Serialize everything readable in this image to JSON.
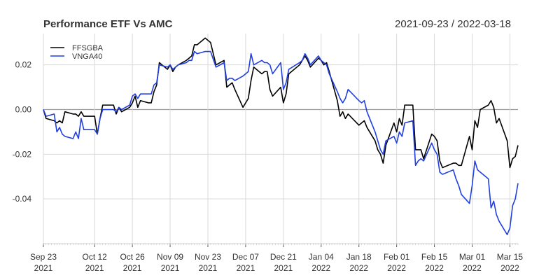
{
  "chart_data": {
    "type": "line",
    "title": "Performance ETF Vs AMC",
    "date_range": "2021-09-23 / 2022-03-18",
    "xlabel": "",
    "ylabel": "",
    "ylim": [
      -0.06,
      0.034
    ],
    "y_ticks": [
      0.02,
      0.0,
      -0.02,
      -0.04
    ],
    "y_tick_labels": [
      "0.02",
      "0.00",
      "-0.02",
      "-0.04"
    ],
    "x_range": [
      "2021-09-23",
      "2022-03-18"
    ],
    "x_ticks": [
      {
        "date": "2021-09-23",
        "line1": "Sep 23",
        "line2": "2021"
      },
      {
        "date": "2021-10-12",
        "line1": "Oct 12",
        "line2": "2021"
      },
      {
        "date": "2021-10-26",
        "line1": "Oct 26",
        "line2": "2021"
      },
      {
        "date": "2021-11-09",
        "line1": "Nov 09",
        "line2": "2021"
      },
      {
        "date": "2021-11-23",
        "line1": "Nov 23",
        "line2": "2021"
      },
      {
        "date": "2021-12-07",
        "line1": "Dec 07",
        "line2": "2021"
      },
      {
        "date": "2021-12-21",
        "line1": "Dec 21",
        "line2": "2021"
      },
      {
        "date": "2022-01-04",
        "line1": "Jan 04",
        "line2": "2022"
      },
      {
        "date": "2022-01-18",
        "line1": "Jan 18",
        "line2": "2022"
      },
      {
        "date": "2022-02-01",
        "line1": "Feb 01",
        "line2": "2022"
      },
      {
        "date": "2022-02-15",
        "line1": "Feb 15",
        "line2": "2022"
      },
      {
        "date": "2022-03-01",
        "line1": "Mar 01",
        "line2": "2022"
      },
      {
        "date": "2022-03-15",
        "line1": "Mar 15",
        "line2": "2022"
      }
    ],
    "legend_position": "top-left",
    "series": [
      {
        "name": "FFSGBA",
        "color": "#000000",
        "points": [
          [
            "2021-09-23",
            0.0
          ],
          [
            "2021-09-24",
            -0.004
          ],
          [
            "2021-09-27",
            -0.005
          ],
          [
            "2021-09-28",
            -0.006
          ],
          [
            "2021-09-29",
            -0.005
          ],
          [
            "2021-09-30",
            -0.006
          ],
          [
            "2021-10-01",
            -0.001
          ],
          [
            "2021-10-04",
            -0.002
          ],
          [
            "2021-10-05",
            -0.002
          ],
          [
            "2021-10-06",
            -0.003
          ],
          [
            "2021-10-07",
            -0.001
          ],
          [
            "2021-10-08",
            -0.003
          ],
          [
            "2021-10-11",
            -0.003
          ],
          [
            "2021-10-12",
            -0.003
          ],
          [
            "2021-10-13",
            -0.011
          ],
          [
            "2021-10-14",
            -0.004
          ],
          [
            "2021-10-15",
            0.002
          ],
          [
            "2021-10-18",
            0.002
          ],
          [
            "2021-10-19",
            0.002
          ],
          [
            "2021-10-20",
            -0.002
          ],
          [
            "2021-10-21",
            0.001
          ],
          [
            "2021-10-22",
            -0.001
          ],
          [
            "2021-10-25",
            0.001
          ],
          [
            "2021-10-26",
            0.003
          ],
          [
            "2021-10-27",
            0.006
          ],
          [
            "2021-10-28",
            0.001
          ],
          [
            "2021-10-29",
            0.004
          ],
          [
            "2021-11-01",
            0.003
          ],
          [
            "2021-11-02",
            0.003
          ],
          [
            "2021-11-03",
            0.008
          ],
          [
            "2021-11-04",
            0.011
          ],
          [
            "2021-11-05",
            0.021
          ],
          [
            "2021-11-08",
            0.018
          ],
          [
            "2021-11-09",
            0.02
          ],
          [
            "2021-11-10",
            0.017
          ],
          [
            "2021-11-11",
            0.019
          ],
          [
            "2021-11-12",
            0.02
          ],
          [
            "2021-11-15",
            0.022
          ],
          [
            "2021-11-16",
            0.023
          ],
          [
            "2021-11-17",
            0.024
          ],
          [
            "2021-11-18",
            0.029
          ],
          [
            "2021-11-19",
            0.029
          ],
          [
            "2021-11-22",
            0.032
          ],
          [
            "2021-11-23",
            0.031
          ],
          [
            "2021-11-24",
            0.03
          ],
          [
            "2021-11-26",
            0.02
          ],
          [
            "2021-11-29",
            0.022
          ],
          [
            "2021-11-30",
            0.01
          ],
          [
            "2021-12-01",
            0.011
          ],
          [
            "2021-12-02",
            0.012
          ],
          [
            "2021-12-03",
            0.009
          ],
          [
            "2021-12-06",
            0.001
          ],
          [
            "2021-12-07",
            0.003
          ],
          [
            "2021-12-08",
            0.005
          ],
          [
            "2021-12-09",
            0.013
          ],
          [
            "2021-12-10",
            0.019
          ],
          [
            "2021-12-13",
            0.016
          ],
          [
            "2021-12-14",
            0.017
          ],
          [
            "2021-12-15",
            0.017
          ],
          [
            "2021-12-16",
            0.009
          ],
          [
            "2021-12-17",
            0.006
          ],
          [
            "2021-12-20",
            0.01
          ],
          [
            "2021-12-21",
            0.003
          ],
          [
            "2021-12-22",
            0.007
          ],
          [
            "2021-12-23",
            0.016
          ],
          [
            "2021-12-27",
            0.02
          ],
          [
            "2021-12-28",
            0.022
          ],
          [
            "2021-12-29",
            0.024
          ],
          [
            "2021-12-30",
            0.022
          ],
          [
            "2021-12-31",
            0.019
          ],
          [
            "2022-01-03",
            0.023
          ],
          [
            "2022-01-04",
            0.022
          ],
          [
            "2022-01-05",
            0.02
          ],
          [
            "2022-01-06",
            0.021
          ],
          [
            "2022-01-07",
            0.017
          ],
          [
            "2022-01-10",
            0.004
          ],
          [
            "2022-01-11",
            -0.003
          ],
          [
            "2022-01-12",
            -0.001
          ],
          [
            "2022-01-13",
            -0.004
          ],
          [
            "2022-01-14",
            -0.002
          ],
          [
            "2022-01-18",
            -0.007
          ],
          [
            "2022-01-19",
            -0.006
          ],
          [
            "2022-01-20",
            -0.005
          ],
          [
            "2022-01-21",
            -0.008
          ],
          [
            "2022-01-24",
            -0.014
          ],
          [
            "2022-01-25",
            -0.018
          ],
          [
            "2022-01-26",
            -0.02
          ],
          [
            "2022-01-27",
            -0.024
          ],
          [
            "2022-01-28",
            -0.016
          ],
          [
            "2022-01-31",
            -0.006
          ],
          [
            "2022-02-01",
            -0.01
          ],
          [
            "2022-02-02",
            -0.004
          ],
          [
            "2022-02-03",
            -0.007
          ],
          [
            "2022-02-04",
            0.002
          ],
          [
            "2022-02-07",
            0.002
          ],
          [
            "2022-02-08",
            -0.018
          ],
          [
            "2022-02-09",
            -0.018
          ],
          [
            "2022-02-10",
            -0.018
          ],
          [
            "2022-02-11",
            -0.022
          ],
          [
            "2022-02-14",
            -0.011
          ],
          [
            "2022-02-15",
            -0.012
          ],
          [
            "2022-02-16",
            -0.014
          ],
          [
            "2022-02-17",
            -0.023
          ],
          [
            "2022-02-18",
            -0.026
          ],
          [
            "2022-02-22",
            -0.024
          ],
          [
            "2022-02-23",
            -0.024
          ],
          [
            "2022-02-24",
            -0.025
          ],
          [
            "2022-02-25",
            -0.025
          ],
          [
            "2022-02-28",
            -0.012
          ],
          [
            "2022-03-01",
            -0.018
          ],
          [
            "2022-03-02",
            -0.005
          ],
          [
            "2022-03-03",
            -0.008
          ],
          [
            "2022-03-04",
            0.0
          ],
          [
            "2022-03-07",
            0.002
          ],
          [
            "2022-03-08",
            0.004
          ],
          [
            "2022-03-09",
            0.001
          ],
          [
            "2022-03-10",
            -0.006
          ],
          [
            "2022-03-11",
            -0.004
          ],
          [
            "2022-03-14",
            -0.014
          ],
          [
            "2022-03-15",
            -0.026
          ],
          [
            "2022-03-16",
            -0.022
          ],
          [
            "2022-03-17",
            -0.021
          ],
          [
            "2022-03-18",
            -0.016
          ]
        ]
      },
      {
        "name": "VNGA40",
        "color": "#1f3fe0",
        "points": [
          [
            "2021-09-23",
            0.0
          ],
          [
            "2021-09-24",
            -0.003
          ],
          [
            "2021-09-27",
            -0.002
          ],
          [
            "2021-09-28",
            -0.01
          ],
          [
            "2021-09-29",
            -0.008
          ],
          [
            "2021-09-30",
            -0.011
          ],
          [
            "2021-10-01",
            -0.012
          ],
          [
            "2021-10-04",
            -0.013
          ],
          [
            "2021-10-05",
            -0.01
          ],
          [
            "2021-10-06",
            -0.013
          ],
          [
            "2021-10-07",
            -0.004
          ],
          [
            "2021-10-08",
            -0.009
          ],
          [
            "2021-10-11",
            -0.009
          ],
          [
            "2021-10-12",
            -0.009
          ],
          [
            "2021-10-13",
            -0.011
          ],
          [
            "2021-10-14",
            -0.004
          ],
          [
            "2021-10-15",
            0.0
          ],
          [
            "2021-10-18",
            0.0
          ],
          [
            "2021-10-19",
            0.0
          ],
          [
            "2021-10-20",
            -0.001
          ],
          [
            "2021-10-21",
            0.001
          ],
          [
            "2021-10-22",
            0.0
          ],
          [
            "2021-10-25",
            0.002
          ],
          [
            "2021-10-26",
            0.006
          ],
          [
            "2021-10-27",
            0.007
          ],
          [
            "2021-10-28",
            0.005
          ],
          [
            "2021-10-29",
            0.007
          ],
          [
            "2021-11-01",
            0.007
          ],
          [
            "2021-11-02",
            0.007
          ],
          [
            "2021-11-03",
            0.011
          ],
          [
            "2021-11-04",
            0.012
          ],
          [
            "2021-11-05",
            0.02
          ],
          [
            "2021-11-08",
            0.019
          ],
          [
            "2021-11-09",
            0.02
          ],
          [
            "2021-11-10",
            0.018
          ],
          [
            "2021-11-11",
            0.019
          ],
          [
            "2021-11-12",
            0.02
          ],
          [
            "2021-11-15",
            0.021
          ],
          [
            "2021-11-16",
            0.022
          ],
          [
            "2021-11-17",
            0.022
          ],
          [
            "2021-11-18",
            0.026
          ],
          [
            "2021-11-19",
            0.025
          ],
          [
            "2021-11-22",
            0.026
          ],
          [
            "2021-11-23",
            0.026
          ],
          [
            "2021-11-24",
            0.026
          ],
          [
            "2021-11-26",
            0.019
          ],
          [
            "2021-11-29",
            0.021
          ],
          [
            "2021-11-30",
            0.013
          ],
          [
            "2021-12-01",
            0.014
          ],
          [
            "2021-12-02",
            0.014
          ],
          [
            "2021-12-03",
            0.013
          ],
          [
            "2021-12-06",
            0.015
          ],
          [
            "2021-12-07",
            0.016
          ],
          [
            "2021-12-08",
            0.017
          ],
          [
            "2021-12-09",
            0.025
          ],
          [
            "2021-12-10",
            0.02
          ],
          [
            "2021-12-13",
            0.022
          ],
          [
            "2021-12-14",
            0.021
          ],
          [
            "2021-12-15",
            0.021
          ],
          [
            "2021-12-16",
            0.02
          ],
          [
            "2021-12-17",
            0.016
          ],
          [
            "2021-12-20",
            0.021
          ],
          [
            "2021-12-21",
            0.009
          ],
          [
            "2021-12-22",
            0.012
          ],
          [
            "2021-12-23",
            0.018
          ],
          [
            "2021-12-27",
            0.021
          ],
          [
            "2021-12-28",
            0.022
          ],
          [
            "2021-12-29",
            0.025
          ],
          [
            "2021-12-30",
            0.023
          ],
          [
            "2021-12-31",
            0.02
          ],
          [
            "2022-01-03",
            0.024
          ],
          [
            "2022-01-04",
            0.022
          ],
          [
            "2022-01-05",
            0.021
          ],
          [
            "2022-01-06",
            0.02
          ],
          [
            "2022-01-07",
            0.016
          ],
          [
            "2022-01-10",
            0.008
          ],
          [
            "2022-01-11",
            0.005
          ],
          [
            "2022-01-12",
            0.003
          ],
          [
            "2022-01-13",
            0.005
          ],
          [
            "2022-01-14",
            0.009
          ],
          [
            "2022-01-18",
            0.004
          ],
          [
            "2022-01-19",
            0.003
          ],
          [
            "2022-01-20",
            0.004
          ],
          [
            "2022-01-21",
            -0.001
          ],
          [
            "2022-01-24",
            -0.01
          ],
          [
            "2022-01-25",
            -0.014
          ],
          [
            "2022-01-26",
            -0.018
          ],
          [
            "2022-01-27",
            -0.02
          ],
          [
            "2022-01-28",
            -0.014
          ],
          [
            "2022-01-31",
            -0.012
          ],
          [
            "2022-02-01",
            -0.015
          ],
          [
            "2022-02-02",
            -0.01
          ],
          [
            "2022-02-03",
            -0.012
          ],
          [
            "2022-02-04",
            -0.006
          ],
          [
            "2022-02-07",
            -0.005
          ],
          [
            "2022-02-08",
            -0.025
          ],
          [
            "2022-02-09",
            -0.023
          ],
          [
            "2022-02-10",
            -0.022
          ],
          [
            "2022-02-11",
            -0.023
          ],
          [
            "2022-02-14",
            -0.015
          ],
          [
            "2022-02-15",
            -0.018
          ],
          [
            "2022-02-16",
            -0.02
          ],
          [
            "2022-02-17",
            -0.028
          ],
          [
            "2022-02-18",
            -0.029
          ],
          [
            "2022-02-22",
            -0.027
          ],
          [
            "2022-02-23",
            -0.031
          ],
          [
            "2022-02-24",
            -0.034
          ],
          [
            "2022-02-25",
            -0.038
          ],
          [
            "2022-02-28",
            -0.042
          ],
          [
            "2022-03-01",
            -0.034
          ],
          [
            "2022-03-02",
            -0.023
          ],
          [
            "2022-03-03",
            -0.027
          ],
          [
            "2022-03-04",
            -0.028
          ],
          [
            "2022-03-07",
            -0.031
          ],
          [
            "2022-03-08",
            -0.044
          ],
          [
            "2022-03-09",
            -0.041
          ],
          [
            "2022-03-10",
            -0.047
          ],
          [
            "2022-03-11",
            -0.05
          ],
          [
            "2022-03-14",
            -0.056
          ],
          [
            "2022-03-15",
            -0.053
          ],
          [
            "2022-03-16",
            -0.043
          ],
          [
            "2022-03-17",
            -0.04
          ],
          [
            "2022-03-18",
            -0.033
          ]
        ]
      }
    ]
  }
}
